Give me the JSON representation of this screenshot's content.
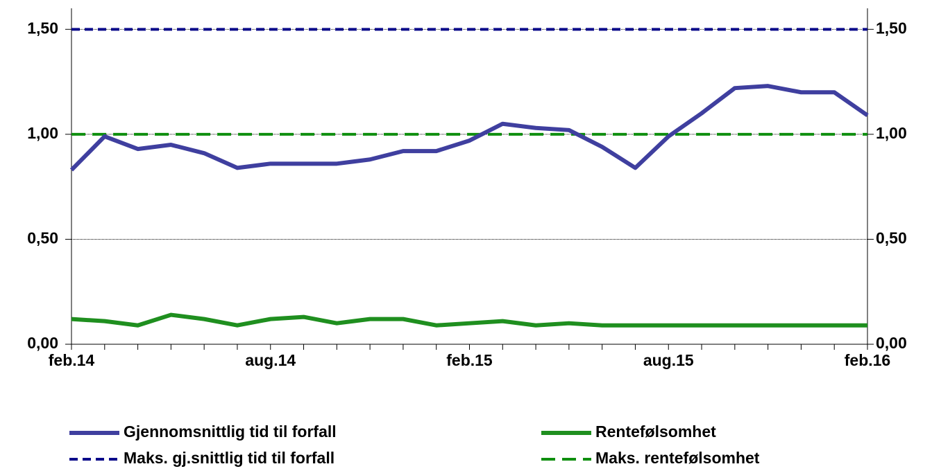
{
  "chart_data": {
    "type": "line",
    "categories": [
      "feb.14",
      null,
      null,
      null,
      null,
      null,
      "aug.14",
      null,
      null,
      null,
      null,
      null,
      "feb.15",
      null,
      null,
      null,
      null,
      null,
      "aug.15",
      null,
      null,
      null,
      null,
      null,
      "feb.16"
    ],
    "series": [
      {
        "name": "Gjennomsnittlig tid til forfall",
        "color": "#3f3f9f",
        "dashed": false,
        "values": [
          0.83,
          0.99,
          0.93,
          0.95,
          0.91,
          0.84,
          0.86,
          0.86,
          0.86,
          0.88,
          0.92,
          0.92,
          0.97,
          1.05,
          1.03,
          1.02,
          0.94,
          0.84,
          0.99,
          1.1,
          1.22,
          1.23,
          1.2,
          1.2,
          1.09
        ]
      },
      {
        "name": "Rentefølsomhet",
        "color": "#1f8f1f",
        "dashed": false,
        "values": [
          0.12,
          0.11,
          0.09,
          0.14,
          0.12,
          0.09,
          0.12,
          0.13,
          0.1,
          0.12,
          0.12,
          0.09,
          0.1,
          0.11,
          0.09,
          0.1,
          0.09,
          0.09,
          0.09,
          0.09,
          0.09,
          0.09,
          0.09,
          0.09,
          0.09
        ]
      },
      {
        "name": "Maks. gj.snittlig tid til forfall",
        "color": "#0a0a8a",
        "dashed": true,
        "values": [
          1.5,
          1.5,
          1.5,
          1.5,
          1.5,
          1.5,
          1.5,
          1.5,
          1.5,
          1.5,
          1.5,
          1.5,
          1.5,
          1.5,
          1.5,
          1.5,
          1.5,
          1.5,
          1.5,
          1.5,
          1.5,
          1.5,
          1.5,
          1.5,
          1.5
        ]
      },
      {
        "name": "Maks. rentefølsomhet",
        "color": "#0f8f0f",
        "dashed": true,
        "values": [
          1.0,
          1.0,
          1.0,
          1.0,
          1.0,
          1.0,
          1.0,
          1.0,
          1.0,
          1.0,
          1.0,
          1.0,
          1.0,
          1.0,
          1.0,
          1.0,
          1.0,
          1.0,
          1.0,
          1.0,
          1.0,
          1.0,
          1.0,
          1.0,
          1.0
        ]
      }
    ],
    "ylim": [
      0,
      1.6
    ],
    "yticks": [
      {
        "value": 0,
        "label": "0,00"
      },
      {
        "value": 0.5,
        "label": "0,50"
      },
      {
        "value": 1.0,
        "label": "1,00"
      },
      {
        "value": 1.5,
        "label": "1,50"
      }
    ],
    "y2lim": [
      0,
      1.6
    ],
    "y2ticks": [
      {
        "value": 0,
        "label": "0,00"
      },
      {
        "value": 0.5,
        "label": "0,50"
      },
      {
        "value": 1.0,
        "label": "1,00"
      },
      {
        "value": 1.5,
        "label": "1,50"
      }
    ],
    "grid": true
  }
}
